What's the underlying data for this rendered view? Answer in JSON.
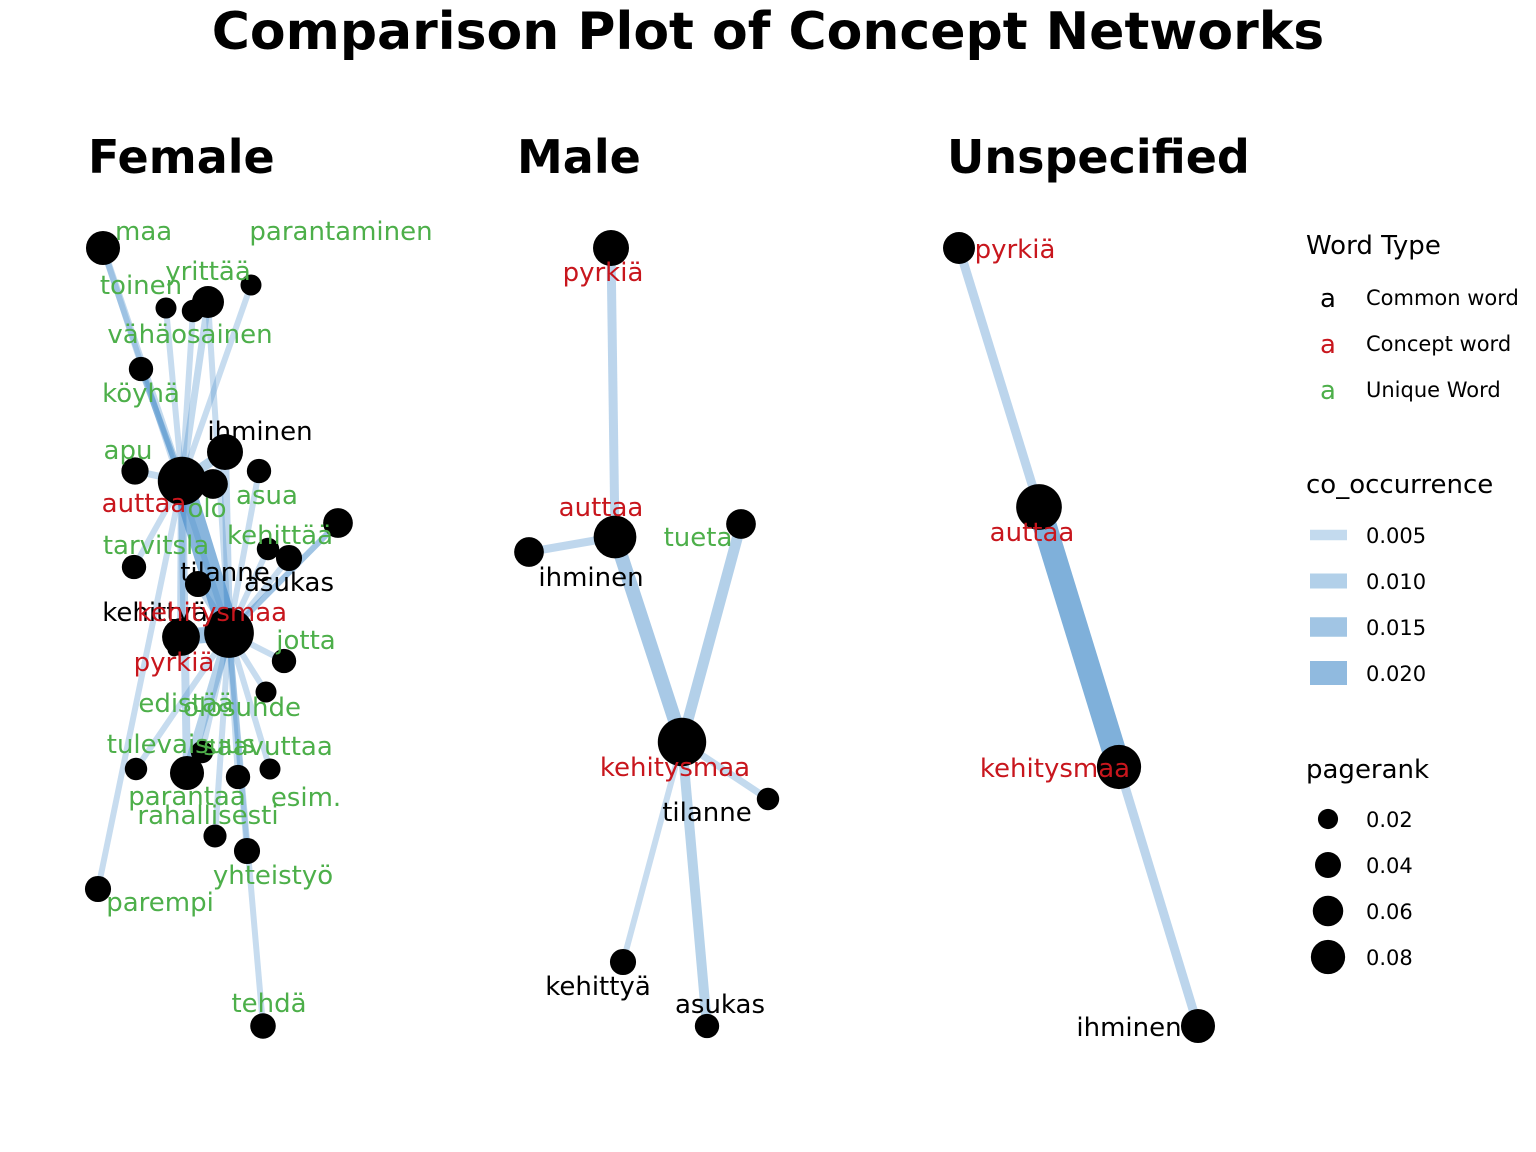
{
  "title": "Comparison Plot of Concept Networks",
  "colors": {
    "common": "#000000",
    "concept": "#c8161d",
    "unique": "#4daf4a",
    "edge": "#4a8fcb"
  },
  "panels": [
    {
      "title": "Female",
      "nodes": [
        {
          "id": "maa",
          "label": "maa",
          "type": "unique",
          "pagerank": 0.035
        },
        {
          "id": "parantaminen",
          "label": "parantaminen",
          "type": "unique",
          "pagerank": 0.01
        },
        {
          "id": "yrittaa",
          "label": "yrittää",
          "type": "unique",
          "pagerank": 0.03
        },
        {
          "id": "toinen",
          "label": "toinen",
          "type": "unique",
          "pagerank": 0.01
        },
        {
          "id": "toinen2",
          "label": "",
          "type": "unique",
          "pagerank": 0.012
        },
        {
          "id": "vahaosainen",
          "label": "vähäosainen",
          "type": "unique",
          "pagerank": 0.015
        },
        {
          "id": "koyha",
          "label": "köyhä",
          "type": "unique",
          "pagerank": 0.015
        },
        {
          "id": "ihminen",
          "label": "ihminen",
          "type": "common",
          "pagerank": 0.04
        },
        {
          "id": "apu",
          "label": "apu",
          "type": "unique",
          "pagerank": 0.02
        },
        {
          "id": "auttaa",
          "label": "auttaa",
          "type": "concept",
          "pagerank": 0.08
        },
        {
          "id": "olo",
          "label": "olo",
          "type": "unique",
          "pagerank": 0.025
        },
        {
          "id": "asua",
          "label": "asua",
          "type": "unique",
          "pagerank": 0.015
        },
        {
          "id": "kehittaa",
          "label": "kehittää",
          "type": "unique",
          "pagerank": 0.025
        },
        {
          "id": "asukas",
          "label": "asukas",
          "type": "common",
          "pagerank": 0.018
        },
        {
          "id": "kehittaa2",
          "label": "",
          "type": "unique",
          "pagerank": 0.012
        },
        {
          "id": "tarvitsla",
          "label": "tarvitsla",
          "type": "unique",
          "pagerank": 0.015
        },
        {
          "id": "tilanne",
          "label": "tilanne",
          "type": "common",
          "pagerank": 0.018
        },
        {
          "id": "kehittya",
          "label": "kehittyä",
          "type": "common",
          "pagerank": 0.045
        },
        {
          "id": "kehitysmaa",
          "label": "kehitysmaa",
          "type": "concept",
          "pagerank": 0.085
        },
        {
          "id": "jotta",
          "label": "jotta",
          "type": "unique",
          "pagerank": 0.015
        },
        {
          "id": "pyrkia",
          "label": "pyrkiä",
          "type": "concept",
          "pagerank": 0.002
        },
        {
          "id": "edistaa",
          "label": "edistää",
          "type": "unique",
          "pagerank": 0.012
        },
        {
          "id": "olosuhde",
          "label": "olosuhde",
          "type": "unique",
          "pagerank": 0.01
        },
        {
          "id": "tulevaisuus",
          "label": "tulevaisuus",
          "type": "unique",
          "pagerank": 0.012
        },
        {
          "id": "saavuttaa",
          "label": "saavuttaa",
          "type": "unique",
          "pagerank": 0.01
        },
        {
          "id": "parantaa",
          "label": "parantaa",
          "type": "unique",
          "pagerank": 0.035
        },
        {
          "id": "esim",
          "label": "esim.",
          "type": "unique",
          "pagerank": 0.015
        },
        {
          "id": "rahallisesti",
          "label": "rahallisesti",
          "type": "unique",
          "pagerank": 0.013
        },
        {
          "id": "yhteistyo",
          "label": "yhteistyö",
          "type": "unique",
          "pagerank": 0.018
        },
        {
          "id": "parempi",
          "label": "parempi",
          "type": "unique",
          "pagerank": 0.018
        },
        {
          "id": "tehda",
          "label": "tehdä",
          "type": "unique",
          "pagerank": 0.017
        },
        {
          "id": "parantaminen_label",
          "label": "para",
          "type": "unique",
          "pagerank": 0
        }
      ],
      "edges": [
        {
          "from": "auttaa",
          "to": "kehitysmaa",
          "co_occurrence": 0.02
        },
        {
          "from": "kehittya",
          "to": "kehitysmaa",
          "co_occurrence": 0.014
        },
        {
          "from": "auttaa",
          "to": "ihminen",
          "co_occurrence": 0.008
        },
        {
          "from": "auttaa",
          "to": "maa",
          "co_occurrence": 0.005
        },
        {
          "from": "auttaa",
          "to": "yrittaa",
          "co_occurrence": 0.005
        },
        {
          "from": "auttaa",
          "to": "toinen2",
          "co_occurrence": 0.004
        },
        {
          "from": "auttaa",
          "to": "toinen",
          "co_occurrence": 0.004
        },
        {
          "from": "auttaa",
          "to": "parantaminen",
          "co_occurrence": 0.004
        },
        {
          "from": "auttaa",
          "to": "vahaosainen",
          "co_occurrence": 0.004
        },
        {
          "from": "auttaa",
          "to": "koyha",
          "co_occurrence": 0.004
        },
        {
          "from": "auttaa",
          "to": "apu",
          "co_occurrence": 0.005
        },
        {
          "from": "auttaa",
          "to": "olo",
          "co_occurrence": 0.005
        },
        {
          "from": "auttaa",
          "to": "tarvitsla",
          "co_occurrence": 0.004
        },
        {
          "from": "auttaa",
          "to": "parantaa",
          "co_occurrence": 0.006
        },
        {
          "from": "auttaa",
          "to": "parempi",
          "co_occurrence": 0.004
        },
        {
          "from": "kehitysmaa",
          "to": "ihminen",
          "co_occurrence": 0.006
        },
        {
          "from": "kehitysmaa",
          "to": "asua",
          "co_occurrence": 0.004
        },
        {
          "from": "kehitysmaa",
          "to": "kehittaa",
          "co_occurrence": 0.004
        },
        {
          "from": "kehitysmaa",
          "to": "asukas",
          "co_occurrence": 0.004
        },
        {
          "from": "kehitysmaa",
          "to": "kehittaa2",
          "co_occurrence": 0.004
        },
        {
          "from": "kehitysmaa",
          "to": "tilanne",
          "co_occurrence": 0.006
        },
        {
          "from": "kehitysmaa",
          "to": "jotta",
          "co_occurrence": 0.004
        },
        {
          "from": "kehitysmaa",
          "to": "olosuhde",
          "co_occurrence": 0.004
        },
        {
          "from": "kehitysmaa",
          "to": "saavuttaa",
          "co_occurrence": 0.004
        },
        {
          "from": "kehitysmaa",
          "to": "parantaa",
          "co_occurrence": 0.008
        },
        {
          "from": "kehitysmaa",
          "to": "esim",
          "co_occurrence": 0.004
        },
        {
          "from": "kehitysmaa",
          "to": "rahallisesti",
          "co_occurrence": 0.004
        },
        {
          "from": "kehitysmaa",
          "to": "yhteistyo",
          "co_occurrence": 0.004
        },
        {
          "from": "kehitysmaa",
          "to": "tulevaisuus",
          "co_occurrence": 0.004
        },
        {
          "from": "kehitysmaa",
          "to": "edistaa",
          "co_occurrence": 0.004
        },
        {
          "from": "kehitysmaa",
          "to": "tehda",
          "co_occurrence": 0.004
        },
        {
          "from": "kehitysmaa",
          "to": "yrittaa",
          "co_occurrence": 0.004
        },
        {
          "from": "kehitysmaa",
          "to": "maa",
          "co_occurrence": 0.004
        },
        {
          "from": "kehitysmaa",
          "to": "kehittaa",
          "co_occurrence": 0.004
        },
        {
          "from": "auttaa",
          "to": "kehittya",
          "co_occurrence": 0.006
        }
      ]
    },
    {
      "title": "Male",
      "nodes": [
        {
          "id": "pyrkia",
          "label": "pyrkiä",
          "type": "concept",
          "pagerank": 0.04
        },
        {
          "id": "auttaa",
          "label": "auttaa",
          "type": "concept",
          "pagerank": 0.06
        },
        {
          "id": "tueta",
          "label": "tueta",
          "type": "unique",
          "pagerank": 0.025
        },
        {
          "id": "ihminen",
          "label": "ihminen",
          "type": "common",
          "pagerank": 0.025
        },
        {
          "id": "kehitysmaa",
          "label": "kehitysmaa",
          "type": "concept",
          "pagerank": 0.08
        },
        {
          "id": "tilanne",
          "label": "tilanne",
          "type": "common",
          "pagerank": 0.012
        },
        {
          "id": "kehittya",
          "label": "kehittyä",
          "type": "common",
          "pagerank": 0.018
        },
        {
          "id": "asukas",
          "label": "asukas",
          "type": "common",
          "pagerank": 0.015
        }
      ],
      "edges": [
        {
          "from": "pyrkia",
          "to": "auttaa",
          "co_occurrence": 0.007
        },
        {
          "from": "auttaa",
          "to": "ihminen",
          "co_occurrence": 0.006
        },
        {
          "from": "auttaa",
          "to": "kehitysmaa",
          "co_occurrence": 0.012
        },
        {
          "from": "tueta",
          "to": "kehitysmaa",
          "co_occurrence": 0.009
        },
        {
          "from": "kehitysmaa",
          "to": "tilanne",
          "co_occurrence": 0.005
        },
        {
          "from": "kehitysmaa",
          "to": "kehittya",
          "co_occurrence": 0.004
        },
        {
          "from": "kehitysmaa",
          "to": "asukas",
          "co_occurrence": 0.008
        }
      ]
    },
    {
      "title": "Unspecified",
      "nodes": [
        {
          "id": "pyrkia",
          "label": "pyrkiä",
          "type": "concept",
          "pagerank": 0.03
        },
        {
          "id": "auttaa",
          "label": "auttaa",
          "type": "concept",
          "pagerank": 0.07
        },
        {
          "id": "kehitysmaa",
          "label": "kehitysmaa",
          "type": "concept",
          "pagerank": 0.065
        },
        {
          "id": "ihminen",
          "label": "ihminen",
          "type": "common",
          "pagerank": 0.035
        }
      ],
      "edges": [
        {
          "from": "pyrkia",
          "to": "auttaa",
          "co_occurrence": 0.007
        },
        {
          "from": "auttaa",
          "to": "kehitysmaa",
          "co_occurrence": 0.022
        },
        {
          "from": "kehitysmaa",
          "to": "ihminen",
          "co_occurrence": 0.007
        }
      ]
    }
  ],
  "legend": {
    "word_type": {
      "title": "Word Type",
      "glyph": "a",
      "items": [
        {
          "label": "Common word",
          "type": "common"
        },
        {
          "label": "Concept word",
          "type": "concept"
        },
        {
          "label": "Unique Word",
          "type": "unique"
        }
      ]
    },
    "co_occurrence": {
      "title": "co_occurrence",
      "items": [
        {
          "label": "0.005",
          "value": 0.005
        },
        {
          "label": "0.010",
          "value": 0.01
        },
        {
          "label": "0.015",
          "value": 0.015
        },
        {
          "label": "0.020",
          "value": 0.02
        }
      ]
    },
    "pagerank": {
      "title": "pagerank",
      "items": [
        {
          "label": "0.02",
          "value": 0.02
        },
        {
          "label": "0.04",
          "value": 0.04
        },
        {
          "label": "0.06",
          "value": 0.06
        },
        {
          "label": "0.08",
          "value": 0.08
        }
      ]
    }
  }
}
